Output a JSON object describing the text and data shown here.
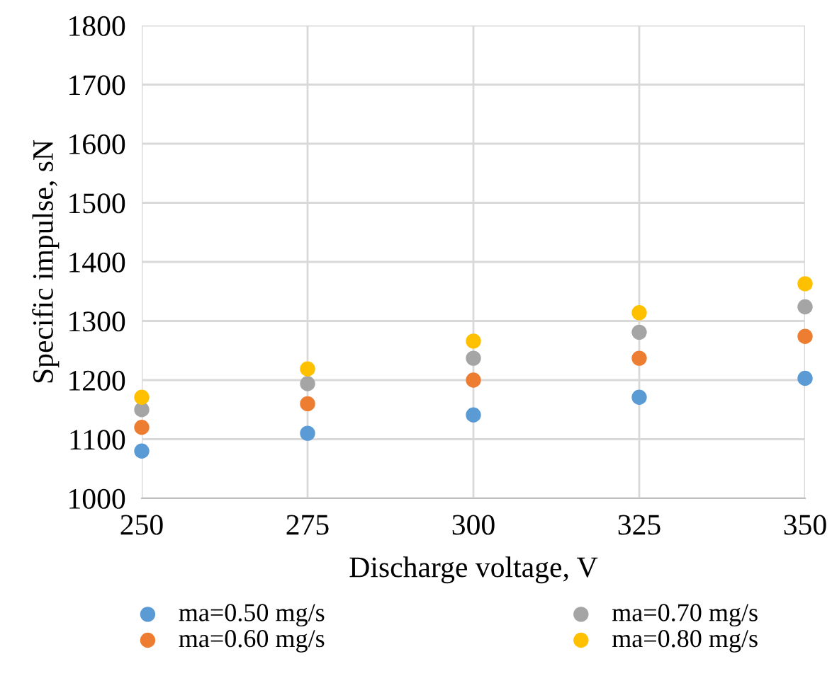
{
  "chart_data": {
    "type": "scatter",
    "xlabel": "Discharge voltage, V",
    "ylabel": "Specific impulse, sN",
    "x": [
      250,
      275,
      300,
      325,
      350
    ],
    "series": [
      {
        "name": "ma=0.50 mg/s",
        "color": "#5b9bd5",
        "values": [
          1080,
          1110,
          1141,
          1171,
          1203
        ]
      },
      {
        "name": "ma=0.60 mg/s",
        "color": "#ed7d31",
        "values": [
          1120,
          1160,
          1200,
          1237,
          1274
        ]
      },
      {
        "name": "ma=0.70 mg/s",
        "color": "#a5a5a5",
        "values": [
          1150,
          1194,
          1237,
          1281,
          1324
        ]
      },
      {
        "name": "ma=0.80 mg/s",
        "color": "#ffc000",
        "values": [
          1171,
          1219,
          1266,
          1314,
          1363
        ]
      }
    ],
    "xlim": [
      250,
      350
    ],
    "xticks": [
      250,
      275,
      300,
      325,
      350
    ],
    "ylim": [
      1000,
      1800
    ],
    "yticks": [
      1000,
      1100,
      1200,
      1300,
      1400,
      1500,
      1600,
      1700,
      1800
    ],
    "grid": true,
    "legend": "bottom",
    "marker": "circle"
  }
}
